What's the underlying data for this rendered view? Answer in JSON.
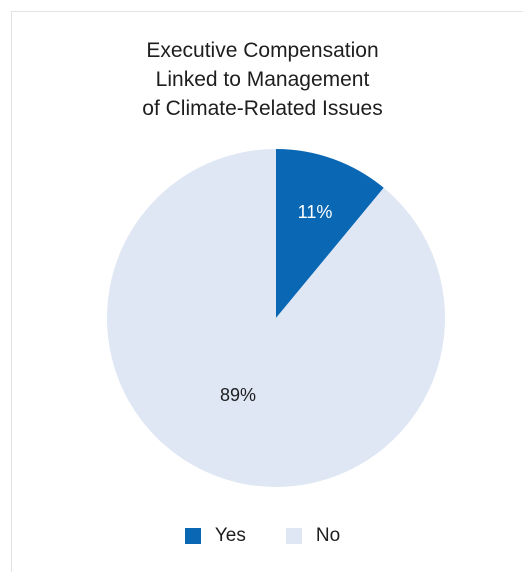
{
  "chart_data": {
    "type": "pie",
    "title": [
      "Executive Compensation",
      "Linked to Management",
      "of Climate-Related Issues"
    ],
    "slices": [
      {
        "name": "Yes",
        "value": 11,
        "label": "11%",
        "color": "#0a67b4",
        "label_color": "#ffffff"
      },
      {
        "name": "No",
        "value": 89,
        "label": "89%",
        "color": "#dfe6f4",
        "label_color": "#1e1e1e"
      }
    ],
    "start": "12 o'clock",
    "direction": "clockwise",
    "legend_position": "bottom"
  }
}
